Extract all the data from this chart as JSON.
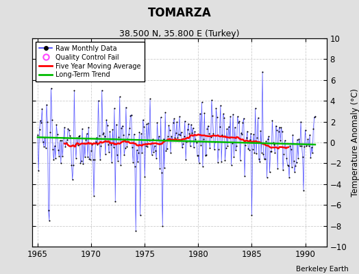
{
  "title": "TOMARZA",
  "subtitle": "38.500 N, 35.800 E (Turkey)",
  "ylabel": "Temperature Anomaly (°C)",
  "credit": "Berkeley Earth",
  "xlim": [
    1964.5,
    1992.0
  ],
  "ylim": [
    -10,
    10
  ],
  "yticks": [
    -10,
    -8,
    -6,
    -4,
    -2,
    0,
    2,
    4,
    6,
    8,
    10
  ],
  "xticks": [
    1965,
    1970,
    1975,
    1980,
    1985,
    1990
  ],
  "bg_color": "#e0e0e0",
  "plot_bg": "#ffffff",
  "raw_color": "#3333ff",
  "raw_fill_color": "#aaaaff",
  "moving_avg_color": "#ff0000",
  "trend_color": "#00bb00",
  "qc_color": "#ff44ff",
  "start_year": 1965,
  "end_year": 1991,
  "seed": 17
}
